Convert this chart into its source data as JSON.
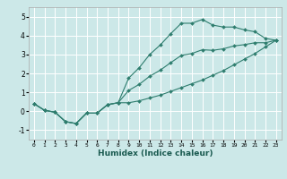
{
  "xlabel": "Humidex (Indice chaleur)",
  "xlim": [
    -0.5,
    23.5
  ],
  "ylim": [
    -1.5,
    5.5
  ],
  "xticks": [
    0,
    1,
    2,
    3,
    4,
    5,
    6,
    7,
    8,
    9,
    10,
    11,
    12,
    13,
    14,
    15,
    16,
    17,
    18,
    19,
    20,
    21,
    22,
    23
  ],
  "yticks": [
    -1,
    0,
    1,
    2,
    3,
    4,
    5
  ],
  "bg_color": "#cce8e8",
  "line_color": "#2e7d6e",
  "grid_color": "#ffffff",
  "series": {
    "upper": [
      [
        0,
        0.4
      ],
      [
        1,
        0.05
      ],
      [
        2,
        -0.05
      ],
      [
        3,
        -0.55
      ],
      [
        4,
        -0.65
      ],
      [
        5,
        -0.1
      ],
      [
        6,
        -0.1
      ],
      [
        7,
        0.35
      ],
      [
        8,
        0.45
      ],
      [
        9,
        1.75
      ],
      [
        10,
        2.3
      ],
      [
        11,
        3.0
      ],
      [
        12,
        3.5
      ],
      [
        13,
        4.1
      ],
      [
        14,
        4.65
      ],
      [
        15,
        4.65
      ],
      [
        16,
        4.85
      ],
      [
        17,
        4.55
      ],
      [
        18,
        4.45
      ],
      [
        19,
        4.45
      ],
      [
        20,
        4.3
      ],
      [
        21,
        4.2
      ],
      [
        22,
        3.85
      ],
      [
        23,
        3.75
      ]
    ],
    "lower": [
      [
        0,
        0.4
      ],
      [
        1,
        0.05
      ],
      [
        2,
        -0.05
      ],
      [
        3,
        -0.55
      ],
      [
        4,
        -0.65
      ],
      [
        5,
        -0.1
      ],
      [
        6,
        -0.1
      ],
      [
        7,
        0.35
      ],
      [
        8,
        0.45
      ],
      [
        9,
        0.45
      ],
      [
        10,
        0.55
      ],
      [
        11,
        0.7
      ],
      [
        12,
        0.85
      ],
      [
        13,
        1.05
      ],
      [
        14,
        1.25
      ],
      [
        15,
        1.45
      ],
      [
        16,
        1.65
      ],
      [
        17,
        1.9
      ],
      [
        18,
        2.15
      ],
      [
        19,
        2.45
      ],
      [
        20,
        2.75
      ],
      [
        21,
        3.05
      ],
      [
        22,
        3.4
      ],
      [
        23,
        3.75
      ]
    ],
    "middle": [
      [
        0,
        0.4
      ],
      [
        1,
        0.05
      ],
      [
        2,
        -0.05
      ],
      [
        3,
        -0.55
      ],
      [
        4,
        -0.65
      ],
      [
        5,
        -0.1
      ],
      [
        6,
        -0.1
      ],
      [
        7,
        0.35
      ],
      [
        8,
        0.45
      ],
      [
        9,
        1.1
      ],
      [
        10,
        1.42
      ],
      [
        11,
        1.85
      ],
      [
        12,
        2.17
      ],
      [
        13,
        2.57
      ],
      [
        14,
        2.95
      ],
      [
        15,
        3.05
      ],
      [
        16,
        3.25
      ],
      [
        17,
        3.22
      ],
      [
        18,
        3.3
      ],
      [
        19,
        3.45
      ],
      [
        20,
        3.52
      ],
      [
        21,
        3.62
      ],
      [
        22,
        3.62
      ],
      [
        23,
        3.75
      ]
    ]
  }
}
